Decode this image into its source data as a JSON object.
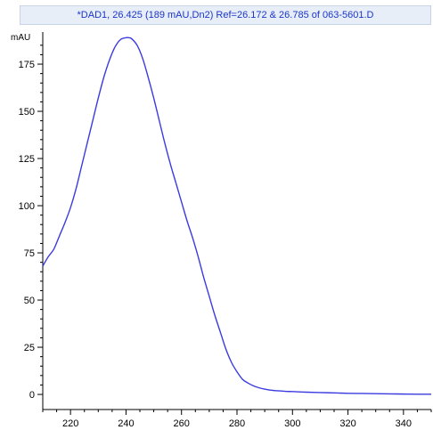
{
  "window": {
    "title": "*DAD1, 26.425 (189 mAU,Dn2) Ref=26.172 & 26.785 of 063-5601.D"
  },
  "colors": {
    "trace": "#3b3bdf",
    "axis": "#000000",
    "title_text": "#1a35c9",
    "title_bg": "#e8eef8"
  },
  "chart_data": {
    "type": "line",
    "title": "*DAD1, 26.425 (189 mAU,Dn2) Ref=26.172 & 26.785 of 063-5601.D",
    "xlabel": "",
    "ylabel": "mAU",
    "xlim": [
      210,
      350
    ],
    "ylim": [
      -8,
      192
    ],
    "x_ticks": [
      220,
      240,
      260,
      280,
      300,
      320,
      340
    ],
    "y_ticks": [
      0,
      25,
      50,
      75,
      100,
      125,
      150,
      175
    ],
    "grid": false,
    "series": [
      {
        "name": "",
        "x": [
          210,
          212,
          214,
          216,
          218,
          220,
          222,
          224,
          226,
          228,
          230,
          232,
          234,
          236,
          238,
          240,
          241,
          242,
          244,
          246,
          248,
          250,
          252,
          254,
          256,
          258,
          260,
          262,
          264,
          266,
          268,
          270,
          272,
          274,
          276,
          278,
          280,
          282,
          284,
          286,
          288,
          290,
          292,
          294,
          296,
          298,
          300,
          305,
          310,
          315,
          320,
          325,
          330,
          335,
          340,
          345,
          350
        ],
        "y": [
          68,
          73,
          77,
          84,
          91,
          99,
          109,
          121,
          133,
          145,
          157,
          168,
          177,
          184,
          188,
          189,
          189,
          188.5,
          185,
          178,
          168,
          157,
          145,
          133,
          122,
          112,
          102,
          92,
          83,
          73,
          62,
          52,
          42,
          33,
          24,
          17,
          12,
          8,
          6,
          4.5,
          3.5,
          2.8,
          2.3,
          2,
          1.8,
          1.6,
          1.5,
          1.2,
          1,
          0.8,
          0.6,
          0.5,
          0.4,
          0.3,
          0.2,
          0.1,
          0.1
        ]
      }
    ]
  }
}
